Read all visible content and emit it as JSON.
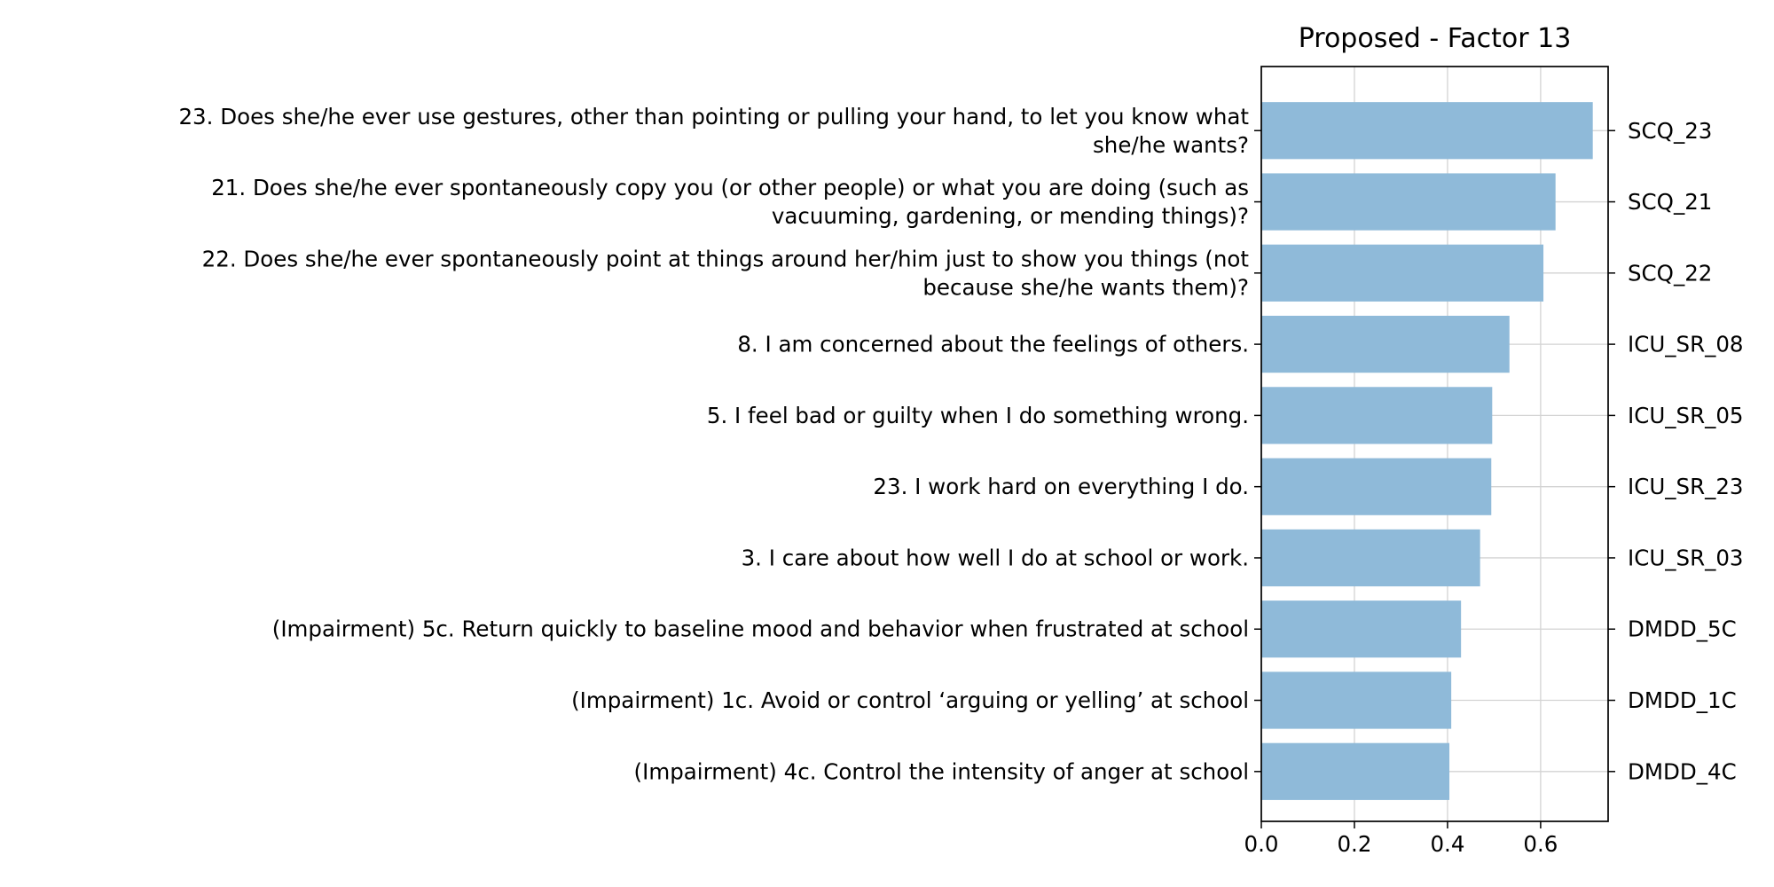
{
  "chart_data": {
    "type": "bar",
    "orientation": "horizontal",
    "title": "Proposed - Factor 13",
    "xlabel": "",
    "ylabel": "",
    "xlim": [
      0,
      0.745
    ],
    "xticks": [
      0.0,
      0.2,
      0.4,
      0.6
    ],
    "xtick_labels": [
      "0.0",
      "0.2",
      "0.4",
      "0.6"
    ],
    "grid": true,
    "bar_color": "#8fbad9",
    "categories": [
      [
        "23. Does she/he ever use gestures, other than pointing or pulling your hand, to let you know what",
        "she/he wants?"
      ],
      [
        "21. Does she/he ever spontaneously copy you (or other people) or what you are doing (such as",
        "vacuuming, gardening, or mending things)?"
      ],
      [
        "22. Does she/he ever spontaneously point at things around her/him just to show you things (not",
        "because she/he wants them)?"
      ],
      [
        "8. I am concerned about the feelings of others."
      ],
      [
        "5. I feel bad or guilty when I do something wrong."
      ],
      [
        "23. I work hard on everything I do."
      ],
      [
        "3. I care about how well I do at school or work."
      ],
      [
        "(Impairment) 5c. Return quickly to baseline mood and behavior when frustrated at school"
      ],
      [
        "(Impairment) 1c. Avoid or control ‘arguing or yelling’ at school"
      ],
      [
        "(Impairment) 4c. Control the intensity of anger at school"
      ]
    ],
    "codes": [
      "SCQ_23",
      "SCQ_21",
      "SCQ_22",
      "ICU_SR_08",
      "ICU_SR_05",
      "ICU_SR_23",
      "ICU_SR_03",
      "DMDD_5C",
      "DMDD_1C",
      "DMDD_4C"
    ],
    "values": [
      0.712,
      0.632,
      0.606,
      0.533,
      0.496,
      0.494,
      0.47,
      0.429,
      0.408,
      0.404
    ]
  }
}
